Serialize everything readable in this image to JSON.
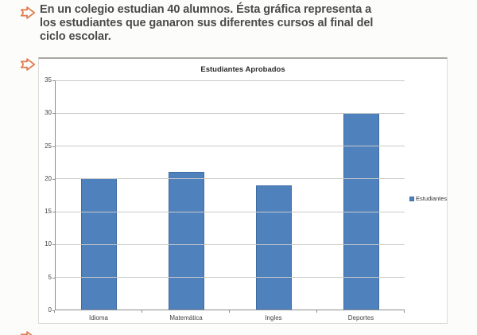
{
  "question": {
    "lines": [
      "En un colegio estudian 40 alumnos. Ésta gráfica representa a",
      "los estudiantes que ganaron sus diferentes cursos al final del",
      "ciclo escolar."
    ]
  },
  "colors": {
    "bar_fill": "#4f81bd",
    "bar_border": "#406ba2",
    "arrow_orange": "#e08055",
    "text_dark_gray": "#4a4a4a",
    "gridline_gray": "#c9c9c9",
    "axis_gray": "#8c8c8c"
  },
  "chart_data": {
    "type": "bar",
    "title": "Estudiantes Aprobados",
    "categories": [
      "Idioma",
      "Matemática",
      "Ingles",
      "Deportes"
    ],
    "series": [
      {
        "name": "Estudiantes",
        "values": [
          20,
          21,
          19,
          30
        ]
      }
    ],
    "xlabel": "",
    "ylabel": "",
    "ylim": [
      0,
      35
    ],
    "ytick_step": 5,
    "grid": true,
    "legend_position": "right"
  }
}
